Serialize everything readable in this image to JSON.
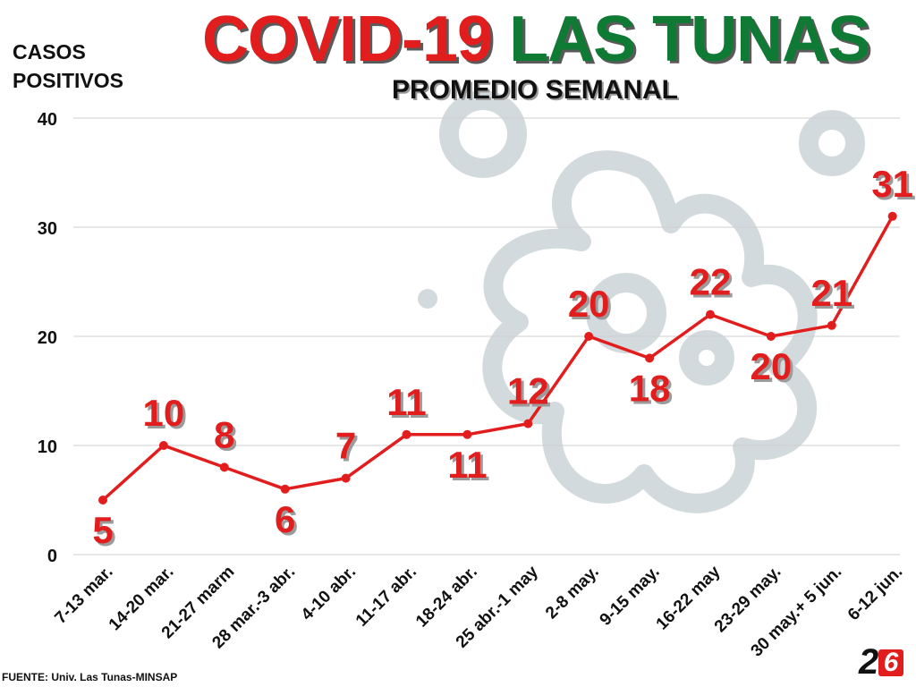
{
  "header": {
    "title_part1": "COVID-19",
    "title_part2": "LAS TUNAS",
    "subtitle": "PROMEDIO SEMANAL",
    "ylabel_line1": "CASOS",
    "ylabel_line2": "POSITIVOS"
  },
  "footer": {
    "source": "FUENTE: Univ. Las Tunas-MINSAP",
    "logo_2": "2",
    "logo_6": "6"
  },
  "colors": {
    "line": "#e11d1d",
    "title_red": "#e11d1d",
    "title_green": "#0f7a34",
    "grid": "#cfcfcf",
    "watermark": "#d3dadd"
  },
  "chart_data": {
    "type": "line",
    "title": "COVID-19 LAS TUNAS",
    "subtitle": "PROMEDIO SEMANAL",
    "xlabel": "",
    "ylabel": "CASOS POSITIVOS",
    "ylim": [
      0,
      40
    ],
    "yticks": [
      0,
      10,
      20,
      30,
      40
    ],
    "grid": true,
    "categories": [
      "7-13 mar.",
      "14-20 mar.",
      "21-27 marm",
      "28 mar.-3 abr.",
      "4-10 abr.",
      "11-17 abr.",
      "18-24 abr.",
      "25 abr.-1 may",
      "2-8 may.",
      "9-15 may.",
      "16-22 may",
      "23-29 may.",
      "30 may.+ 5 jun.",
      "6-12 jun."
    ],
    "values": [
      5,
      10,
      8,
      6,
      7,
      11,
      11,
      12,
      20,
      18,
      22,
      20,
      21,
      31
    ],
    "label_positions": [
      "below",
      "above",
      "above",
      "below",
      "above",
      "above",
      "below",
      "above",
      "above",
      "below",
      "above",
      "below",
      "above",
      "above"
    ]
  }
}
